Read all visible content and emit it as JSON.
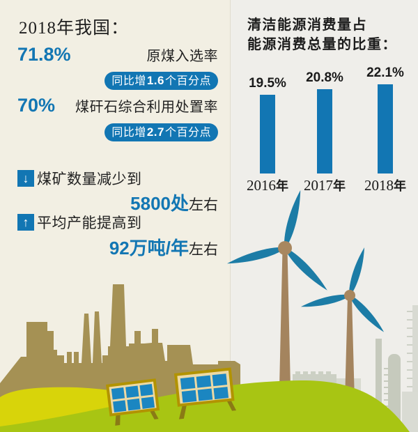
{
  "left_panel": {
    "intro": "2018年我国：",
    "stats": [
      {
        "value": "71.8%",
        "label": "原煤入选率",
        "badge_prefix": "同比增",
        "badge_value": "1.6",
        "badge_suffix": "个百分点"
      },
      {
        "value": "70%",
        "label": "煤矸石综合利用处置率",
        "badge_prefix": "同比增",
        "badge_value": "2.7",
        "badge_suffix": "个百分点"
      }
    ],
    "trends": [
      {
        "direction": "down",
        "arrow": "↓",
        "text": "煤矿数量减少到",
        "highlight": "5800处",
        "suffix": "左右"
      },
      {
        "direction": "up",
        "arrow": "↑",
        "text": "平均产能提高到",
        "highlight": "92万吨/年",
        "suffix": "左右"
      }
    ]
  },
  "right_panel": {
    "title_line1": "清洁能源消费量占",
    "title_line2": "能源消费总量的比重："
  },
  "chart_data": {
    "type": "bar",
    "title": "清洁能源消费量占能源消费总量的比重",
    "categories": [
      "2016年",
      "2017年",
      "2018年"
    ],
    "values": [
      19.5,
      20.8,
      22.1
    ],
    "value_labels": [
      "19.5%",
      "20.8%",
      "22.1%"
    ],
    "unit": "%",
    "ylim": [
      0,
      25
    ],
    "grid": false,
    "legend": "none",
    "bar_color": "#1276b3"
  },
  "illustration": {
    "elements": [
      "factory-silhouette",
      "wind-turbine-large",
      "wind-turbine-small",
      "solar-panel-left",
      "solar-panel-right",
      "refinery-silhouette",
      "yellow-hill",
      "green-hill"
    ]
  },
  "colors": {
    "accent_blue": "#1276b3",
    "solar_cell_blue": "#1b86c1",
    "blade_blue": "#1c7ca6",
    "factory_tan": "#a59154",
    "pole_brown": "#a4845e",
    "hill_yellow_green": "#d8d40a",
    "hill_green": "#a8c513",
    "panel_frame_gold": "#b29300",
    "panel_inner_cream": "#ecd9a4",
    "background_cream": "#f2efe3",
    "background_gray": "#efeeea",
    "text_black": "#212121"
  }
}
